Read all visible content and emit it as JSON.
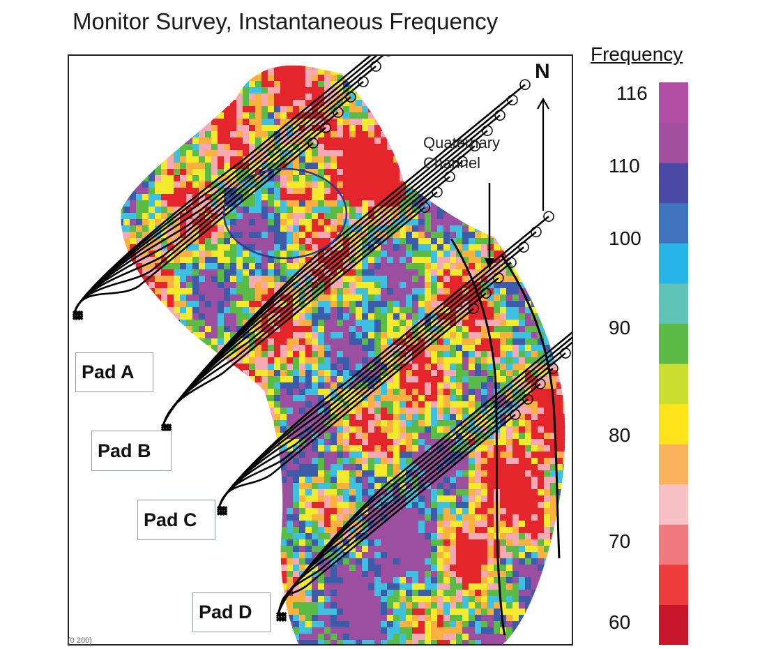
{
  "title": "Monitor Survey, Instantaneous Frequency",
  "north_label": "N",
  "annotation": {
    "line1": "Quaternary",
    "line2": "Channel"
  },
  "pads": [
    {
      "label": "Pad A"
    },
    {
      "label": "Pad B"
    },
    {
      "label": "Pad C"
    },
    {
      "label": "Pad D"
    }
  ],
  "legend": {
    "title": "Frequency",
    "ticks": [
      "116",
      "110",
      "100",
      "90",
      "80",
      "70",
      "60"
    ],
    "range": [
      60,
      116
    ],
    "colors": [
      "#c8172a",
      "#ee3b3c",
      "#f07a80",
      "#f7c1c6",
      "#fbb25c",
      "#fde31a",
      "#c9de2e",
      "#5cba47",
      "#5fc3b5",
      "#27b4e6",
      "#3f73bd",
      "#4a4aa6",
      "#a3509f",
      "#b24ea3"
    ]
  },
  "map_palette": {
    "red": "#e4262c",
    "pink": "#f4a9b5",
    "orange": "#fbb040",
    "yellow": "#f3ea2c",
    "green": "#5bbb47",
    "cyan": "#3ec1e0",
    "blue": "#3c5ba9",
    "purple": "#9c4fa0"
  },
  "footer_fragment": "(0 200)"
}
